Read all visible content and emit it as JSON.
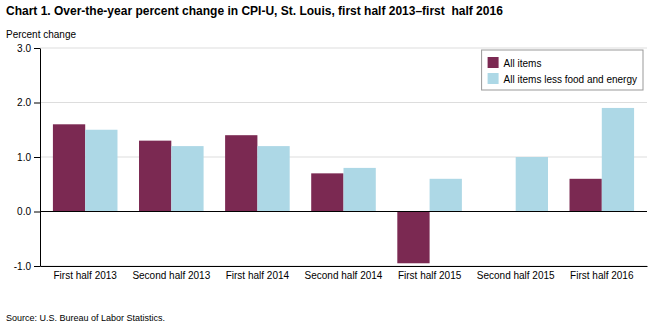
{
  "chart_data": {
    "type": "bar",
    "title": "Chart 1. Over-the-year percent change in CPI-U, St. Louis, first half 2013–first  half 2016",
    "ylabel": "Percent change",
    "source": "Source: U.S. Bureau of Labor Statistics.",
    "categories": [
      "First half 2013",
      "Second half 2013",
      "First half 2014",
      "Second half 2014",
      "First half 2015",
      "Second half 2015",
      "First half 2016"
    ],
    "series": [
      {
        "name": "All items",
        "color": "#7B2952",
        "values": [
          1.6,
          1.3,
          1.4,
          0.7,
          -0.95,
          0.0,
          0.6
        ]
      },
      {
        "name": "All items less food and energy",
        "color": "#ADD8E6",
        "values": [
          1.5,
          1.2,
          1.2,
          0.8,
          0.6,
          1.0,
          1.9
        ]
      }
    ],
    "ylim": [
      -1.0,
      3.0
    ],
    "yticks": [
      {
        "value": -1.0,
        "label": "-1.0"
      },
      {
        "value": 0.0,
        "label": "0.0"
      },
      {
        "value": 1.0,
        "label": "1.0"
      },
      {
        "value": 2.0,
        "label": "2.0"
      },
      {
        "value": 3.0,
        "label": "3.0"
      }
    ],
    "grid": true,
    "legend": "upper right"
  }
}
